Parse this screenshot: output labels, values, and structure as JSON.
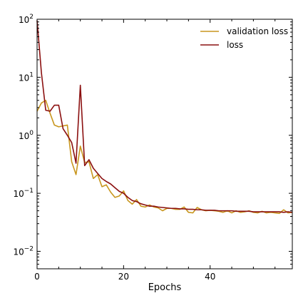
{
  "chart_data": {
    "type": "line",
    "title": "",
    "xlabel": "Epochs",
    "ylabel": "",
    "yscale": "log",
    "xlim": [
      0,
      59
    ],
    "ylim": [
      0.005,
      100
    ],
    "x_ticks": [
      0,
      20,
      40
    ],
    "y_ticks": [
      {
        "value": 0.01,
        "base": "10",
        "exp": "−2"
      },
      {
        "value": 0.1,
        "base": "10",
        "exp": "−1"
      },
      {
        "value": 1,
        "base": "10",
        "exp": "0"
      },
      {
        "value": 10,
        "base": "10",
        "exp": "1"
      },
      {
        "value": 100,
        "base": "10",
        "exp": "2"
      }
    ],
    "legend_position": "top-right",
    "x": [
      0,
      1,
      2,
      3,
      4,
      5,
      6,
      7,
      8,
      9,
      10,
      11,
      12,
      13,
      14,
      15,
      16,
      17,
      18,
      19,
      20,
      21,
      22,
      23,
      24,
      25,
      26,
      27,
      28,
      29,
      30,
      31,
      32,
      33,
      34,
      35,
      36,
      37,
      38,
      39,
      40,
      41,
      42,
      43,
      44,
      45,
      46,
      47,
      48,
      49,
      50,
      51,
      52,
      53,
      54,
      55,
      56,
      57,
      58,
      59
    ],
    "series": [
      {
        "name": "validation loss",
        "color": "#c8961e",
        "values": [
          2.6,
          3.6,
          4.0,
          2.4,
          1.5,
          1.4,
          1.45,
          1.5,
          0.35,
          0.21,
          0.65,
          0.34,
          0.35,
          0.18,
          0.21,
          0.13,
          0.14,
          0.105,
          0.085,
          0.09,
          0.11,
          0.075,
          0.065,
          0.078,
          0.06,
          0.058,
          0.063,
          0.058,
          0.056,
          0.05,
          0.055,
          0.055,
          0.053,
          0.053,
          0.058,
          0.047,
          0.046,
          0.057,
          0.052,
          0.05,
          0.051,
          0.05,
          0.049,
          0.047,
          0.05,
          0.046,
          0.05,
          0.047,
          0.048,
          0.05,
          0.047,
          0.046,
          0.049,
          0.046,
          0.047,
          0.046,
          0.045,
          0.052,
          0.046,
          0.047
        ]
      },
      {
        "name": "loss",
        "color": "#8b1010",
        "values": [
          95,
          12,
          2.7,
          2.6,
          3.3,
          3.3,
          1.3,
          1.0,
          0.75,
          0.33,
          7.3,
          0.3,
          0.38,
          0.27,
          0.22,
          0.18,
          0.16,
          0.145,
          0.125,
          0.108,
          0.1,
          0.085,
          0.075,
          0.072,
          0.066,
          0.063,
          0.06,
          0.06,
          0.058,
          0.057,
          0.056,
          0.055,
          0.055,
          0.054,
          0.054,
          0.053,
          0.053,
          0.052,
          0.052,
          0.051,
          0.051,
          0.051,
          0.05,
          0.05,
          0.05,
          0.05,
          0.049,
          0.049,
          0.049,
          0.049,
          0.048,
          0.048,
          0.048,
          0.048,
          0.048,
          0.048,
          0.048,
          0.047,
          0.048,
          0.047
        ]
      }
    ]
  }
}
